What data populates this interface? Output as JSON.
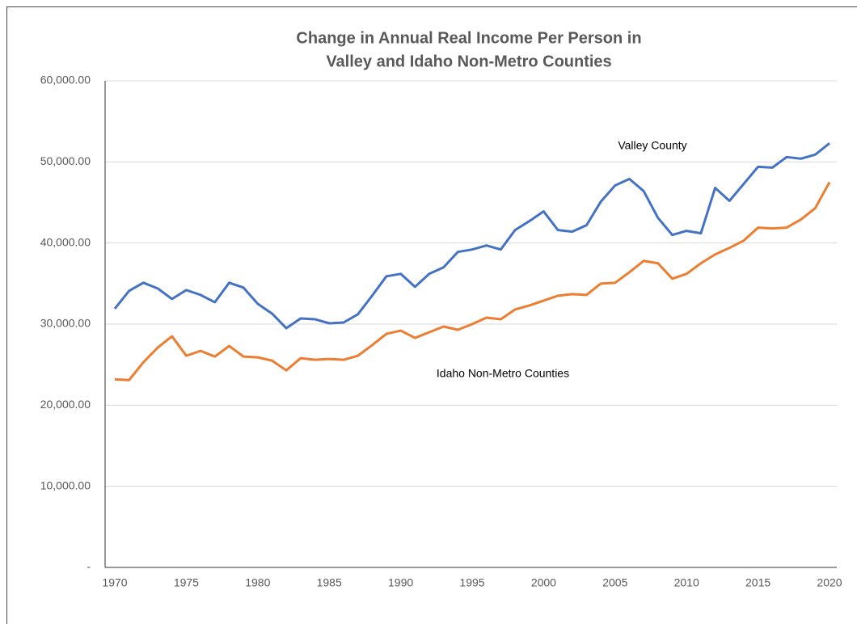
{
  "chart_data": {
    "type": "line",
    "title": [
      "Change in Annual Real Income Per Person in",
      "Valley and Idaho Non-Metro Counties"
    ],
    "x": [
      1970,
      1971,
      1972,
      1973,
      1974,
      1975,
      1976,
      1977,
      1978,
      1979,
      1980,
      1981,
      1982,
      1983,
      1984,
      1985,
      1986,
      1987,
      1988,
      1989,
      1990,
      1991,
      1992,
      1993,
      1994,
      1995,
      1996,
      1997,
      1998,
      1999,
      2000,
      2001,
      2002,
      2003,
      2004,
      2005,
      2006,
      2007,
      2008,
      2009,
      2010,
      2011,
      2012,
      2013,
      2014,
      2015,
      2016,
      2017,
      2018,
      2019,
      2020
    ],
    "series": [
      {
        "name": "Valley County",
        "color": "#4472c4",
        "values": [
          31900,
          34100,
          35100,
          34400,
          33100,
          34200,
          33600,
          32700,
          35100,
          34500,
          32500,
          31300,
          29500,
          30700,
          30600,
          30100,
          30200,
          31200,
          33500,
          35900,
          36200,
          34600,
          36200,
          37000,
          38900,
          39200,
          39700,
          39200,
          41600,
          42700,
          43900,
          41600,
          41400,
          42200,
          45100,
          47100,
          47900,
          46400,
          43100,
          41000,
          41500,
          41200,
          46800,
          45200,
          47300,
          49400,
          49300,
          50600,
          50400,
          50900,
          52300
        ]
      },
      {
        "name": "Idaho Non-Metro Counties",
        "color": "#ed7d31",
        "values": [
          23200,
          23100,
          25300,
          27100,
          28500,
          26100,
          26700,
          26000,
          27300,
          26000,
          25900,
          25500,
          24300,
          25800,
          25600,
          25700,
          25600,
          26100,
          27400,
          28800,
          29200,
          28300,
          29000,
          29700,
          29300,
          30000,
          30800,
          30600,
          31800,
          32300,
          32900,
          33500,
          33700,
          33600,
          35000,
          35100,
          36400,
          37800,
          37500,
          35600,
          36200,
          37500,
          38600,
          39400,
          40300,
          41900,
          41800,
          41900,
          42900,
          44300,
          47500
        ]
      }
    ],
    "xlim": [
      1970,
      2020
    ],
    "xticks": [
      1970,
      1975,
      1980,
      1985,
      1990,
      1995,
      2000,
      2005,
      2010,
      2015,
      2020
    ],
    "ylim": [
      0,
      60000
    ],
    "yticks": [
      {
        "value": 0,
        "label": "-"
      },
      {
        "value": 10000,
        "label": "10,000.00"
      },
      {
        "value": 20000,
        "label": "20,000.00"
      },
      {
        "value": 30000,
        "label": "30,000.00"
      },
      {
        "value": 40000,
        "label": "40,000.00"
      },
      {
        "value": 50000,
        "label": "50,000.00"
      },
      {
        "value": 60000,
        "label": "60,000.00"
      }
    ],
    "grid": true
  }
}
